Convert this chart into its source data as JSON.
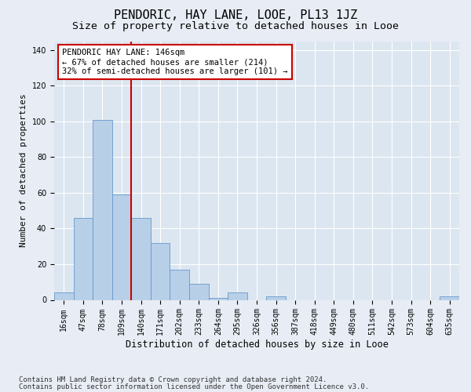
{
  "title": "PENDORIC, HAY LANE, LOOE, PL13 1JZ",
  "subtitle": "Size of property relative to detached houses in Looe",
  "xlabel": "Distribution of detached houses by size in Looe",
  "ylabel": "Number of detached properties",
  "footnote1": "Contains HM Land Registry data © Crown copyright and database right 2024.",
  "footnote2": "Contains public sector information licensed under the Open Government Licence v3.0.",
  "bar_labels": [
    "16sqm",
    "47sqm",
    "78sqm",
    "109sqm",
    "140sqm",
    "171sqm",
    "202sqm",
    "233sqm",
    "264sqm",
    "295sqm",
    "326sqm",
    "356sqm",
    "387sqm",
    "418sqm",
    "449sqm",
    "480sqm",
    "511sqm",
    "542sqm",
    "573sqm",
    "604sqm",
    "635sqm"
  ],
  "bar_values": [
    4,
    46,
    101,
    59,
    46,
    32,
    17,
    9,
    1,
    4,
    0,
    2,
    0,
    0,
    0,
    0,
    0,
    0,
    0,
    0,
    2
  ],
  "bar_color": "#b8cfe8",
  "bar_edge_color": "#6699cc",
  "vline_color": "#cc0000",
  "annotation_line1": "PENDORIC HAY LANE: 146sqm",
  "annotation_line2": "← 67% of detached houses are smaller (214)",
  "annotation_line3": "32% of semi-detached houses are larger (101) →",
  "annotation_box_color": "#cc0000",
  "annotation_box_fill": "white",
  "ylim": [
    0,
    145
  ],
  "yticks": [
    0,
    20,
    40,
    60,
    80,
    100,
    120,
    140
  ],
  "background_color": "#e8edf5",
  "plot_background": "#dce6f0",
  "grid_color": "white",
  "title_fontsize": 11,
  "subtitle_fontsize": 9.5,
  "tick_fontsize": 7,
  "ylabel_fontsize": 8,
  "xlabel_fontsize": 8.5,
  "annotation_fontsize": 7.5,
  "footnote_fontsize": 6.5
}
